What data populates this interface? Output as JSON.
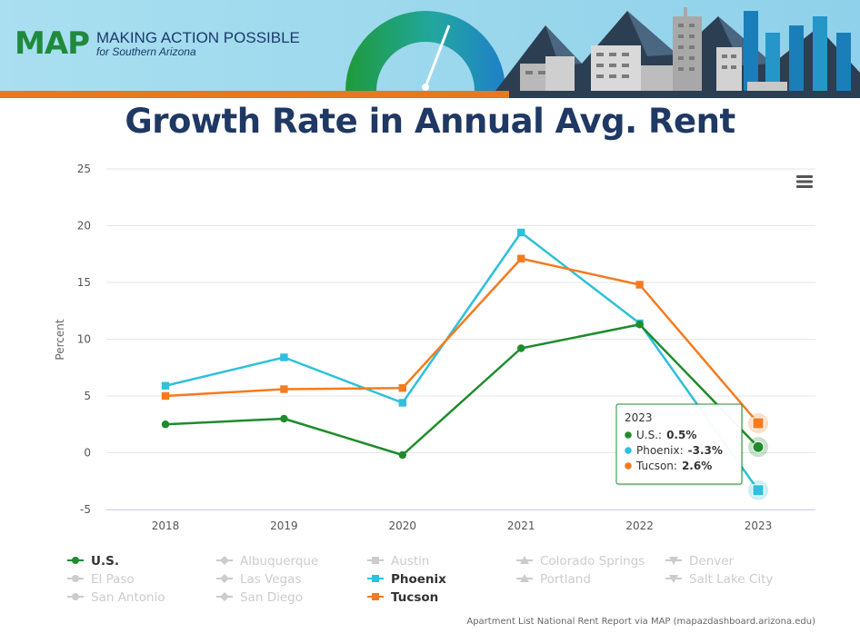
{
  "header": {
    "logo_text": "MAP",
    "tagline": "MAKING ACTION POSSIBLE",
    "subtagline": "for Southern Arizona"
  },
  "slide_title": "Growth Rate in Annual Avg. Rent",
  "chart_data": {
    "type": "line",
    "title": "",
    "xlabel": "",
    "ylabel": "Percent",
    "ylim": [
      -5,
      25
    ],
    "yticks": [
      -5,
      0,
      5,
      10,
      15,
      20,
      25
    ],
    "categories": [
      "2018",
      "2019",
      "2020",
      "2021",
      "2022",
      "2023"
    ],
    "series": [
      {
        "name": "Phoenix",
        "color": "#2ec0dc",
        "marker": "square",
        "values": [
          5.9,
          8.4,
          4.4,
          19.4,
          11.4,
          -3.3
        ]
      },
      {
        "name": "Tucson",
        "color": "#f47b20",
        "marker": "square",
        "values": [
          5.0,
          5.6,
          5.7,
          17.1,
          14.8,
          2.6
        ]
      },
      {
        "name": "U.S.",
        "color": "#1e8c2c",
        "marker": "circle",
        "values": [
          2.5,
          3.0,
          -0.2,
          9.2,
          11.3,
          0.5
        ]
      }
    ],
    "tooltip": {
      "header": "2023",
      "rows": [
        {
          "label": "U.S.:",
          "value": "0.5%",
          "color": "#1e8c2c"
        },
        {
          "label": "Phoenix:",
          "value": "-3.3%",
          "color": "#2ec0dc"
        },
        {
          "label": "Tucson:",
          "value": "2.6%",
          "color": "#f47b20"
        }
      ]
    },
    "legend": [
      {
        "name": "U.S.",
        "active": true,
        "color": "#1e8c2c",
        "symbol": "circle"
      },
      {
        "name": "Albuquerque",
        "active": false,
        "symbol": "diamond"
      },
      {
        "name": "Austin",
        "active": false,
        "symbol": "square"
      },
      {
        "name": "Colorado Springs",
        "active": false,
        "symbol": "triangle"
      },
      {
        "name": "Denver",
        "active": false,
        "symbol": "triangle-down"
      },
      {
        "name": "El Paso",
        "active": false,
        "symbol": "circle"
      },
      {
        "name": "Las Vegas",
        "active": false,
        "symbol": "diamond"
      },
      {
        "name": "Phoenix",
        "active": true,
        "color": "#2ec0dc",
        "symbol": "square"
      },
      {
        "name": "Portland",
        "active": false,
        "symbol": "triangle"
      },
      {
        "name": "Salt Lake City",
        "active": false,
        "symbol": "triangle-down"
      },
      {
        "name": "San Antonio",
        "active": false,
        "symbol": "circle"
      },
      {
        "name": "San Diego",
        "active": false,
        "symbol": "diamond"
      },
      {
        "name": "Tucson",
        "active": true,
        "color": "#f47b20",
        "symbol": "square"
      }
    ],
    "credit": "Apartment List National Rent Report via MAP (mapazdashboard.arizona.edu)",
    "menu_icon": "hamburger-menu-icon"
  }
}
